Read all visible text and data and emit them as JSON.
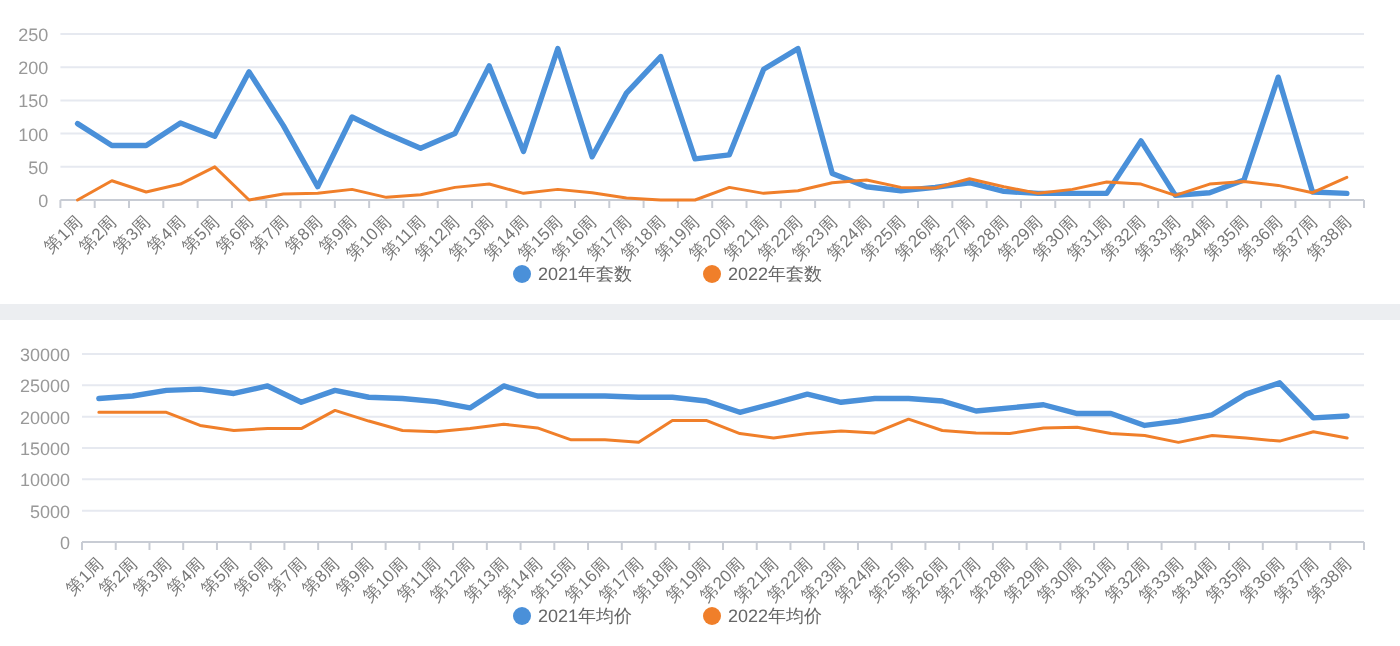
{
  "chart_data": [
    {
      "type": "line",
      "categories": [
        "第1周",
        "第2周",
        "第3周",
        "第4周",
        "第5周",
        "第6周",
        "第7周",
        "第8周",
        "第9周",
        "第10周",
        "第11周",
        "第12周",
        "第13周",
        "第14周",
        "第15周",
        "第16周",
        "第17周",
        "第18周",
        "第19周",
        "第20周",
        "第21周",
        "第22周",
        "第23周",
        "第24周",
        "第25周",
        "第26周",
        "第27周",
        "第28周",
        "第29周",
        "第30周",
        "第31周",
        "第32周",
        "第33周",
        "第34周",
        "第35周",
        "第36周",
        "第37周",
        "第38周"
      ],
      "series": [
        {
          "name": "2021年套数",
          "color": "#4a90d9",
          "values": [
            115,
            82,
            82,
            116,
            96,
            193,
            112,
            20,
            125,
            100,
            78,
            100,
            202,
            73,
            228,
            65,
            161,
            216,
            62,
            68,
            197,
            228,
            40,
            20,
            14,
            19,
            26,
            13,
            10,
            10,
            10,
            89,
            7,
            11,
            30,
            185,
            12,
            10
          ]
        },
        {
          "name": "2022年套数",
          "color": "#f07f2a",
          "values": [
            0,
            29,
            12,
            24,
            50,
            0,
            9,
            10,
            16,
            4,
            8,
            19,
            24,
            10,
            16,
            11,
            3,
            0,
            0,
            19,
            10,
            14,
            26,
            30,
            19,
            18,
            32,
            20,
            10,
            16,
            27,
            24,
            7,
            24,
            28,
            22,
            11,
            34
          ]
        }
      ],
      "ylim": [
        0,
        250
      ],
      "yticks": [
        0,
        50,
        100,
        150,
        200,
        250
      ],
      "grid": "y",
      "legend": "bottom"
    },
    {
      "type": "line",
      "categories": [
        "第1周",
        "第2周",
        "第3周",
        "第4周",
        "第5周",
        "第6周",
        "第7周",
        "第8周",
        "第9周",
        "第10周",
        "第11周",
        "第12周",
        "第13周",
        "第14周",
        "第15周",
        "第16周",
        "第17周",
        "第18周",
        "第19周",
        "第20周",
        "第21周",
        "第22周",
        "第23周",
        "第24周",
        "第25周",
        "第26周",
        "第27周",
        "第28周",
        "第29周",
        "第30周",
        "第31周",
        "第32周",
        "第33周",
        "第34周",
        "第35周",
        "第36周",
        "第37周",
        "第38周"
      ],
      "series": [
        {
          "name": "2021年均价",
          "color": "#4a90d9",
          "values": [
            22900,
            23300,
            24200,
            24400,
            23700,
            24900,
            22300,
            24200,
            23100,
            22900,
            22400,
            21400,
            24900,
            23300,
            23300,
            23300,
            23100,
            23100,
            22500,
            20700,
            22100,
            23600,
            22300,
            22900,
            22900,
            22500,
            20900,
            21400,
            21900,
            20500,
            20500,
            18600,
            19300,
            20300,
            23600,
            25400,
            19800,
            20100
          ]
        },
        {
          "name": "2022年均价",
          "color": "#f07f2a",
          "values": [
            20700,
            20700,
            20700,
            18600,
            17800,
            18100,
            18100,
            21000,
            19300,
            17800,
            17600,
            18100,
            18800,
            18200,
            16300,
            16300,
            15900,
            19400,
            19400,
            17300,
            16600,
            17300,
            17700,
            17400,
            19600,
            17800,
            17400,
            17300,
            18200,
            18300,
            17300,
            17000,
            15900,
            17000,
            16600,
            16100,
            17600,
            16600
          ]
        }
      ],
      "ylim": [
        0,
        30000
      ],
      "yticks": [
        0,
        5000,
        10000,
        15000,
        20000,
        25000,
        30000
      ],
      "grid": "y",
      "legend": "bottom"
    }
  ]
}
